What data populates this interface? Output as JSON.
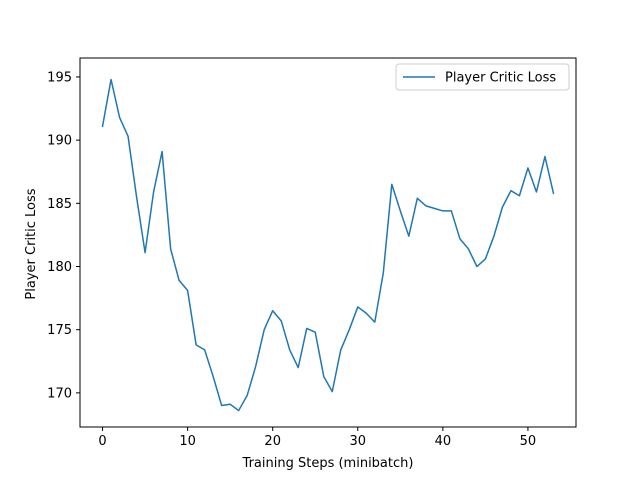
{
  "chart_data": {
    "type": "line",
    "title": "",
    "xlabel": "Training Steps (minibatch)",
    "ylabel": "Player Critic Loss",
    "xlim": [
      -2.65,
      55.65
    ],
    "ylim": [
      167.3,
      196.5
    ],
    "xticks": [
      0,
      10,
      20,
      30,
      40,
      50
    ],
    "yticks": [
      170,
      175,
      180,
      185,
      190,
      195
    ],
    "grid": false,
    "legend": "top-right",
    "series": [
      {
        "name": "Player Critic Loss",
        "color": "#1f77b4",
        "x": [
          0,
          1,
          2,
          3,
          4,
          5,
          6,
          7,
          8,
          9,
          10,
          11,
          12,
          13,
          14,
          15,
          16,
          17,
          18,
          19,
          20,
          21,
          22,
          23,
          24,
          25,
          26,
          27,
          28,
          29,
          30,
          31,
          32,
          33,
          34,
          35,
          36,
          37,
          38,
          39,
          40,
          41,
          42,
          43,
          44,
          45,
          46,
          47,
          48,
          49,
          50,
          51,
          52,
          53
        ],
        "y": [
          191.1,
          194.8,
          191.8,
          190.3,
          185.5,
          181.1,
          185.9,
          189.1,
          181.4,
          178.9,
          178.1,
          173.8,
          173.4,
          171.3,
          169.0,
          169.1,
          168.6,
          169.8,
          172.1,
          175.0,
          176.5,
          175.7,
          173.4,
          172.0,
          175.1,
          174.8,
          171.3,
          170.1,
          173.4,
          175.0,
          176.8,
          176.3,
          175.6,
          179.5,
          186.5,
          184.4,
          182.4,
          185.4,
          184.8,
          184.6,
          184.4,
          184.4,
          182.2,
          181.4,
          180.0,
          180.6,
          182.4,
          184.7,
          186.0,
          185.6,
          187.8,
          185.9,
          188.7,
          185.8
        ]
      }
    ]
  }
}
